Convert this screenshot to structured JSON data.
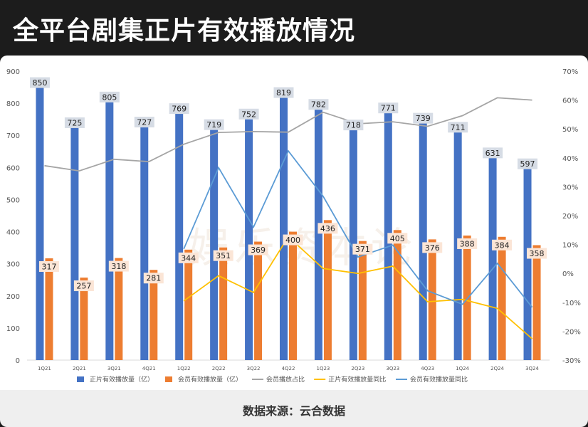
{
  "page": {
    "title": "全平台剧集正片有效播放情况",
    "source": "数据来源：云合数据"
  },
  "chart_data": {
    "type": "bar",
    "categories": [
      "1Q21",
      "2Q21",
      "3Q21",
      "4Q21",
      "1Q22",
      "2Q22",
      "3Q22",
      "4Q22",
      "1Q23",
      "2Q23",
      "3Q23",
      "4Q23",
      "1Q24",
      "2Q24",
      "3Q24"
    ],
    "series": [
      {
        "name": "正片有效播放量（亿）",
        "type": "bar",
        "axis": "left",
        "color": "#4472c4",
        "values": [
          850,
          725,
          805,
          727,
          769,
          719,
          752,
          819,
          782,
          718,
          771,
          739,
          711,
          631,
          597
        ]
      },
      {
        "name": "会员有效播放量（亿）",
        "type": "bar",
        "axis": "left",
        "color": "#ed7d31",
        "values": [
          317,
          257,
          318,
          281,
          344,
          351,
          369,
          400,
          436,
          371,
          405,
          376,
          388,
          384,
          358
        ]
      },
      {
        "name": "会员播放占比",
        "type": "line",
        "axis": "right",
        "color": "#a5a5a5",
        "values": [
          0.373,
          0.355,
          0.395,
          0.387,
          0.447,
          0.488,
          0.491,
          0.489,
          0.558,
          0.518,
          0.525,
          0.509,
          0.546,
          0.608,
          0.6
        ]
      },
      {
        "name": "正片有效播放量同比",
        "type": "line",
        "axis": "right",
        "color": "#ffc000",
        "values": [
          null,
          null,
          null,
          null,
          -0.095,
          -0.008,
          -0.066,
          0.127,
          0.017,
          0.0,
          0.025,
          -0.098,
          -0.09,
          -0.121,
          -0.226
        ]
      },
      {
        "name": "会员有效播放量同比",
        "type": "line",
        "axis": "right",
        "color": "#5b9bd5",
        "values": [
          null,
          null,
          null,
          null,
          0.085,
          0.366,
          0.16,
          0.424,
          0.267,
          0.057,
          0.098,
          -0.06,
          -0.107,
          0.035,
          -0.117
        ]
      }
    ],
    "ylim": [
      0,
      900
    ],
    "yticks": [
      "0",
      "100",
      "200",
      "300",
      "400",
      "500",
      "600",
      "700",
      "800",
      "900"
    ],
    "y2lim": [
      -0.3,
      0.7
    ],
    "y2ticks": [
      "-30%",
      "-20%",
      "-10%",
      "0%",
      "10%",
      "20%",
      "30%",
      "40%",
      "50%",
      "60%",
      "70%"
    ],
    "legend_position": "bottom",
    "grid": false,
    "watermark": "娱乐资本论"
  }
}
